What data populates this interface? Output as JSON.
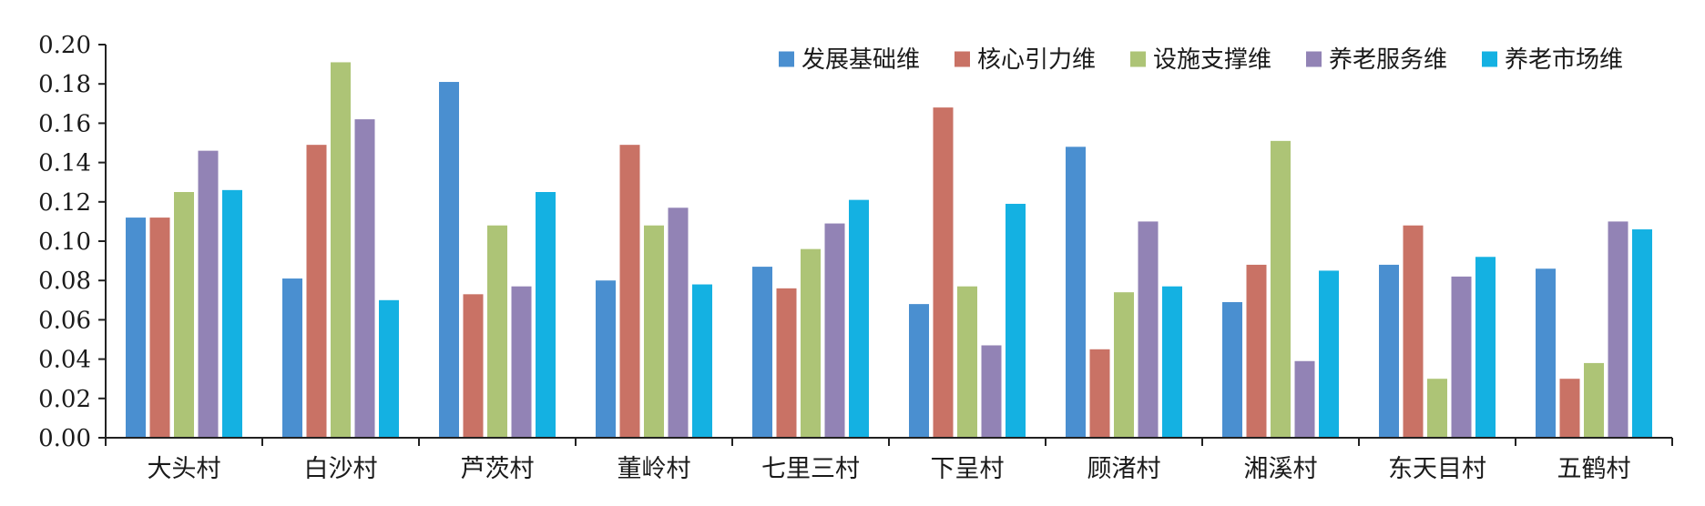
{
  "chart_data": {
    "type": "bar",
    "title": "",
    "xlabel": "",
    "ylabel": "",
    "ylim": [
      0,
      0.2
    ],
    "yticks": [
      "0.00",
      "0.02",
      "0.04",
      "0.06",
      "0.08",
      "0.10",
      "0.12",
      "0.14",
      "0.16",
      "0.18",
      "0.20"
    ],
    "grid": false,
    "legend_position": "top-right",
    "categories": [
      "大头村",
      "白沙村",
      "芦茨村",
      "董岭村",
      "七里三村",
      "下呈村",
      "顾渚村",
      "湘溪村",
      "东天目村",
      "五鹤村"
    ],
    "series": [
      {
        "name": "发展基础维",
        "color": "#4a8fd0",
        "values": [
          0.112,
          0.081,
          0.181,
          0.08,
          0.087,
          0.068,
          0.148,
          0.069,
          0.088,
          0.086
        ]
      },
      {
        "name": "核心引力维",
        "color": "#c97265",
        "values": [
          0.112,
          0.149,
          0.073,
          0.149,
          0.076,
          0.168,
          0.045,
          0.088,
          0.108,
          0.03
        ]
      },
      {
        "name": "设施支撑维",
        "color": "#adc476",
        "values": [
          0.125,
          0.191,
          0.108,
          0.108,
          0.096,
          0.077,
          0.074,
          0.151,
          0.03,
          0.038
        ]
      },
      {
        "name": "养老服务维",
        "color": "#9283b5",
        "values": [
          0.146,
          0.162,
          0.077,
          0.117,
          0.109,
          0.047,
          0.11,
          0.039,
          0.082,
          0.11
        ]
      },
      {
        "name": "养老市场维",
        "color": "#14b1e2",
        "values": [
          0.126,
          0.07,
          0.125,
          0.078,
          0.121,
          0.119,
          0.077,
          0.085,
          0.092,
          0.106
        ]
      }
    ]
  }
}
